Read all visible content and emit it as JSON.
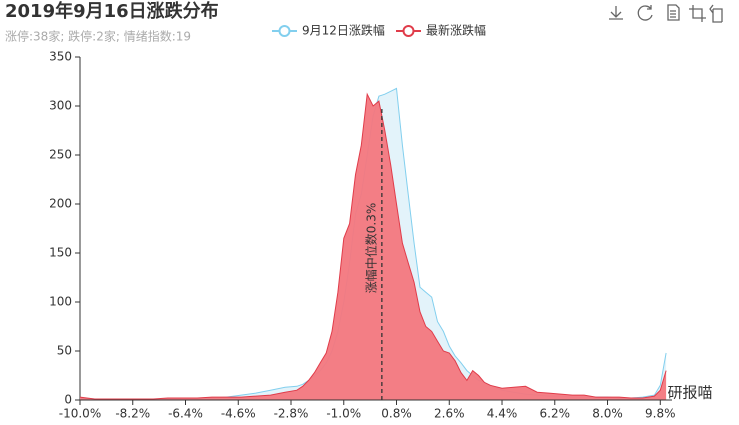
{
  "chart_data": {
    "type": "area",
    "title": "2019年9月16日涨跌分布",
    "subtitle": "涨停:38家; 跌停:2家; 情绪指数:19",
    "watermark": "研报喵",
    "x": [
      -10,
      -9.5,
      -9,
      -8.5,
      -8,
      -7.5,
      -7,
      -6.5,
      -6,
      -5.5,
      -5,
      -4.5,
      -4,
      -3.5,
      -3,
      -2.6,
      -2.4,
      -2.2,
      -2,
      -1.8,
      -1.6,
      -1.4,
      -1.2,
      -1,
      -0.8,
      -0.6,
      -0.4,
      -0.2,
      0,
      0.2,
      0.4,
      0.6,
      0.8,
      1,
      1.2,
      1.4,
      1.6,
      1.8,
      2,
      2.2,
      2.4,
      2.6,
      2.8,
      3,
      3.2,
      3.4,
      3.6,
      3.8,
      4,
      4.4,
      4.8,
      5.2,
      5.6,
      6,
      6.4,
      6.8,
      7.2,
      7.6,
      8,
      8.4,
      8.8,
      9.2,
      9.6,
      9.8,
      10
    ],
    "series": [
      {
        "name": "9月12日涨跌幅",
        "color": "#82cfee",
        "fill": "#dcf0f9",
        "values": [
          2,
          1,
          1,
          1,
          1,
          1,
          1,
          2,
          2,
          2,
          3,
          5,
          7,
          10,
          13,
          14,
          16,
          20,
          25,
          30,
          38,
          50,
          70,
          100,
          140,
          190,
          210,
          250,
          290,
          310,
          312,
          315,
          318,
          260,
          210,
          160,
          115,
          110,
          105,
          80,
          70,
          55,
          45,
          38,
          30,
          25,
          20,
          18,
          15,
          10,
          8,
          6,
          5,
          4,
          4,
          3,
          3,
          3,
          3,
          2,
          2,
          3,
          5,
          15,
          48
        ]
      },
      {
        "name": "最新涨跌幅",
        "color": "#e03c4a",
        "fill": "#f3777e",
        "values": [
          3,
          1,
          1,
          1,
          1,
          1,
          2,
          2,
          2,
          3,
          3,
          3,
          4,
          5,
          8,
          10,
          14,
          20,
          28,
          38,
          48,
          70,
          110,
          165,
          180,
          230,
          260,
          312,
          300,
          305,
          275,
          240,
          200,
          160,
          140,
          120,
          90,
          75,
          70,
          60,
          50,
          48,
          40,
          28,
          20,
          30,
          25,
          18,
          15,
          12,
          13,
          14,
          8,
          7,
          6,
          5,
          5,
          3,
          3,
          3,
          2,
          2,
          4,
          10,
          30
        ]
      }
    ],
    "xlim": [
      -10,
      10.2
    ],
    "xticks": [
      {
        "value": -10,
        "label": "-10.0%"
      },
      {
        "value": -8.2,
        "label": "-8.2%"
      },
      {
        "value": -6.4,
        "label": "-6.4%"
      },
      {
        "value": -4.6,
        "label": "-4.6%"
      },
      {
        "value": -2.8,
        "label": "-2.8%"
      },
      {
        "value": -1,
        "label": "-1.0%"
      },
      {
        "value": 0.8,
        "label": "0.8%"
      },
      {
        "value": 2.6,
        "label": "2.6%"
      },
      {
        "value": 4.4,
        "label": "4.4%"
      },
      {
        "value": 6.2,
        "label": "6.2%"
      },
      {
        "value": 8,
        "label": "8.0%"
      },
      {
        "value": 9.8,
        "label": "9.8%"
      }
    ],
    "ylim": [
      0,
      350
    ],
    "yticks": [
      0,
      50,
      100,
      150,
      200,
      250,
      300,
      350
    ],
    "grid": false,
    "marker_line": {
      "value": 0.3,
      "label": "涨幅中位数0.3%"
    }
  }
}
